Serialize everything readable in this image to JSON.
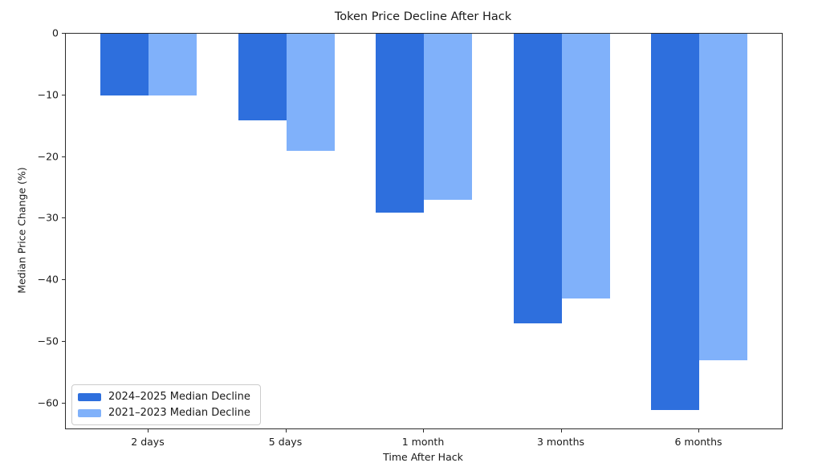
{
  "chart_data": {
    "type": "bar",
    "title": "Token Price Decline After Hack",
    "xlabel": "Time After Hack",
    "ylabel": "Median Price Change (%)",
    "categories": [
      "2 days",
      "5 days",
      "1 month",
      "3 months",
      "6 months"
    ],
    "series": [
      {
        "name": "2024–2025 Median Decline",
        "color": "#2e6fdd",
        "values": [
          -10,
          -14,
          -29,
          -47,
          -61
        ]
      },
      {
        "name": "2021–2023 Median Decline",
        "color": "#80b1fa",
        "values": [
          -10,
          -19,
          -27,
          -43,
          -53
        ]
      }
    ],
    "ylim": [
      -64.05,
      0
    ],
    "yticks": [
      0,
      -10,
      -20,
      -30,
      -40,
      -50,
      -60
    ],
    "ytick_labels": [
      "0",
      "−10",
      "−20",
      "−30",
      "−40",
      "−50",
      "−60"
    ],
    "grid": false,
    "legend_position": "lower left",
    "bar_orientation": "vertical-negative"
  }
}
